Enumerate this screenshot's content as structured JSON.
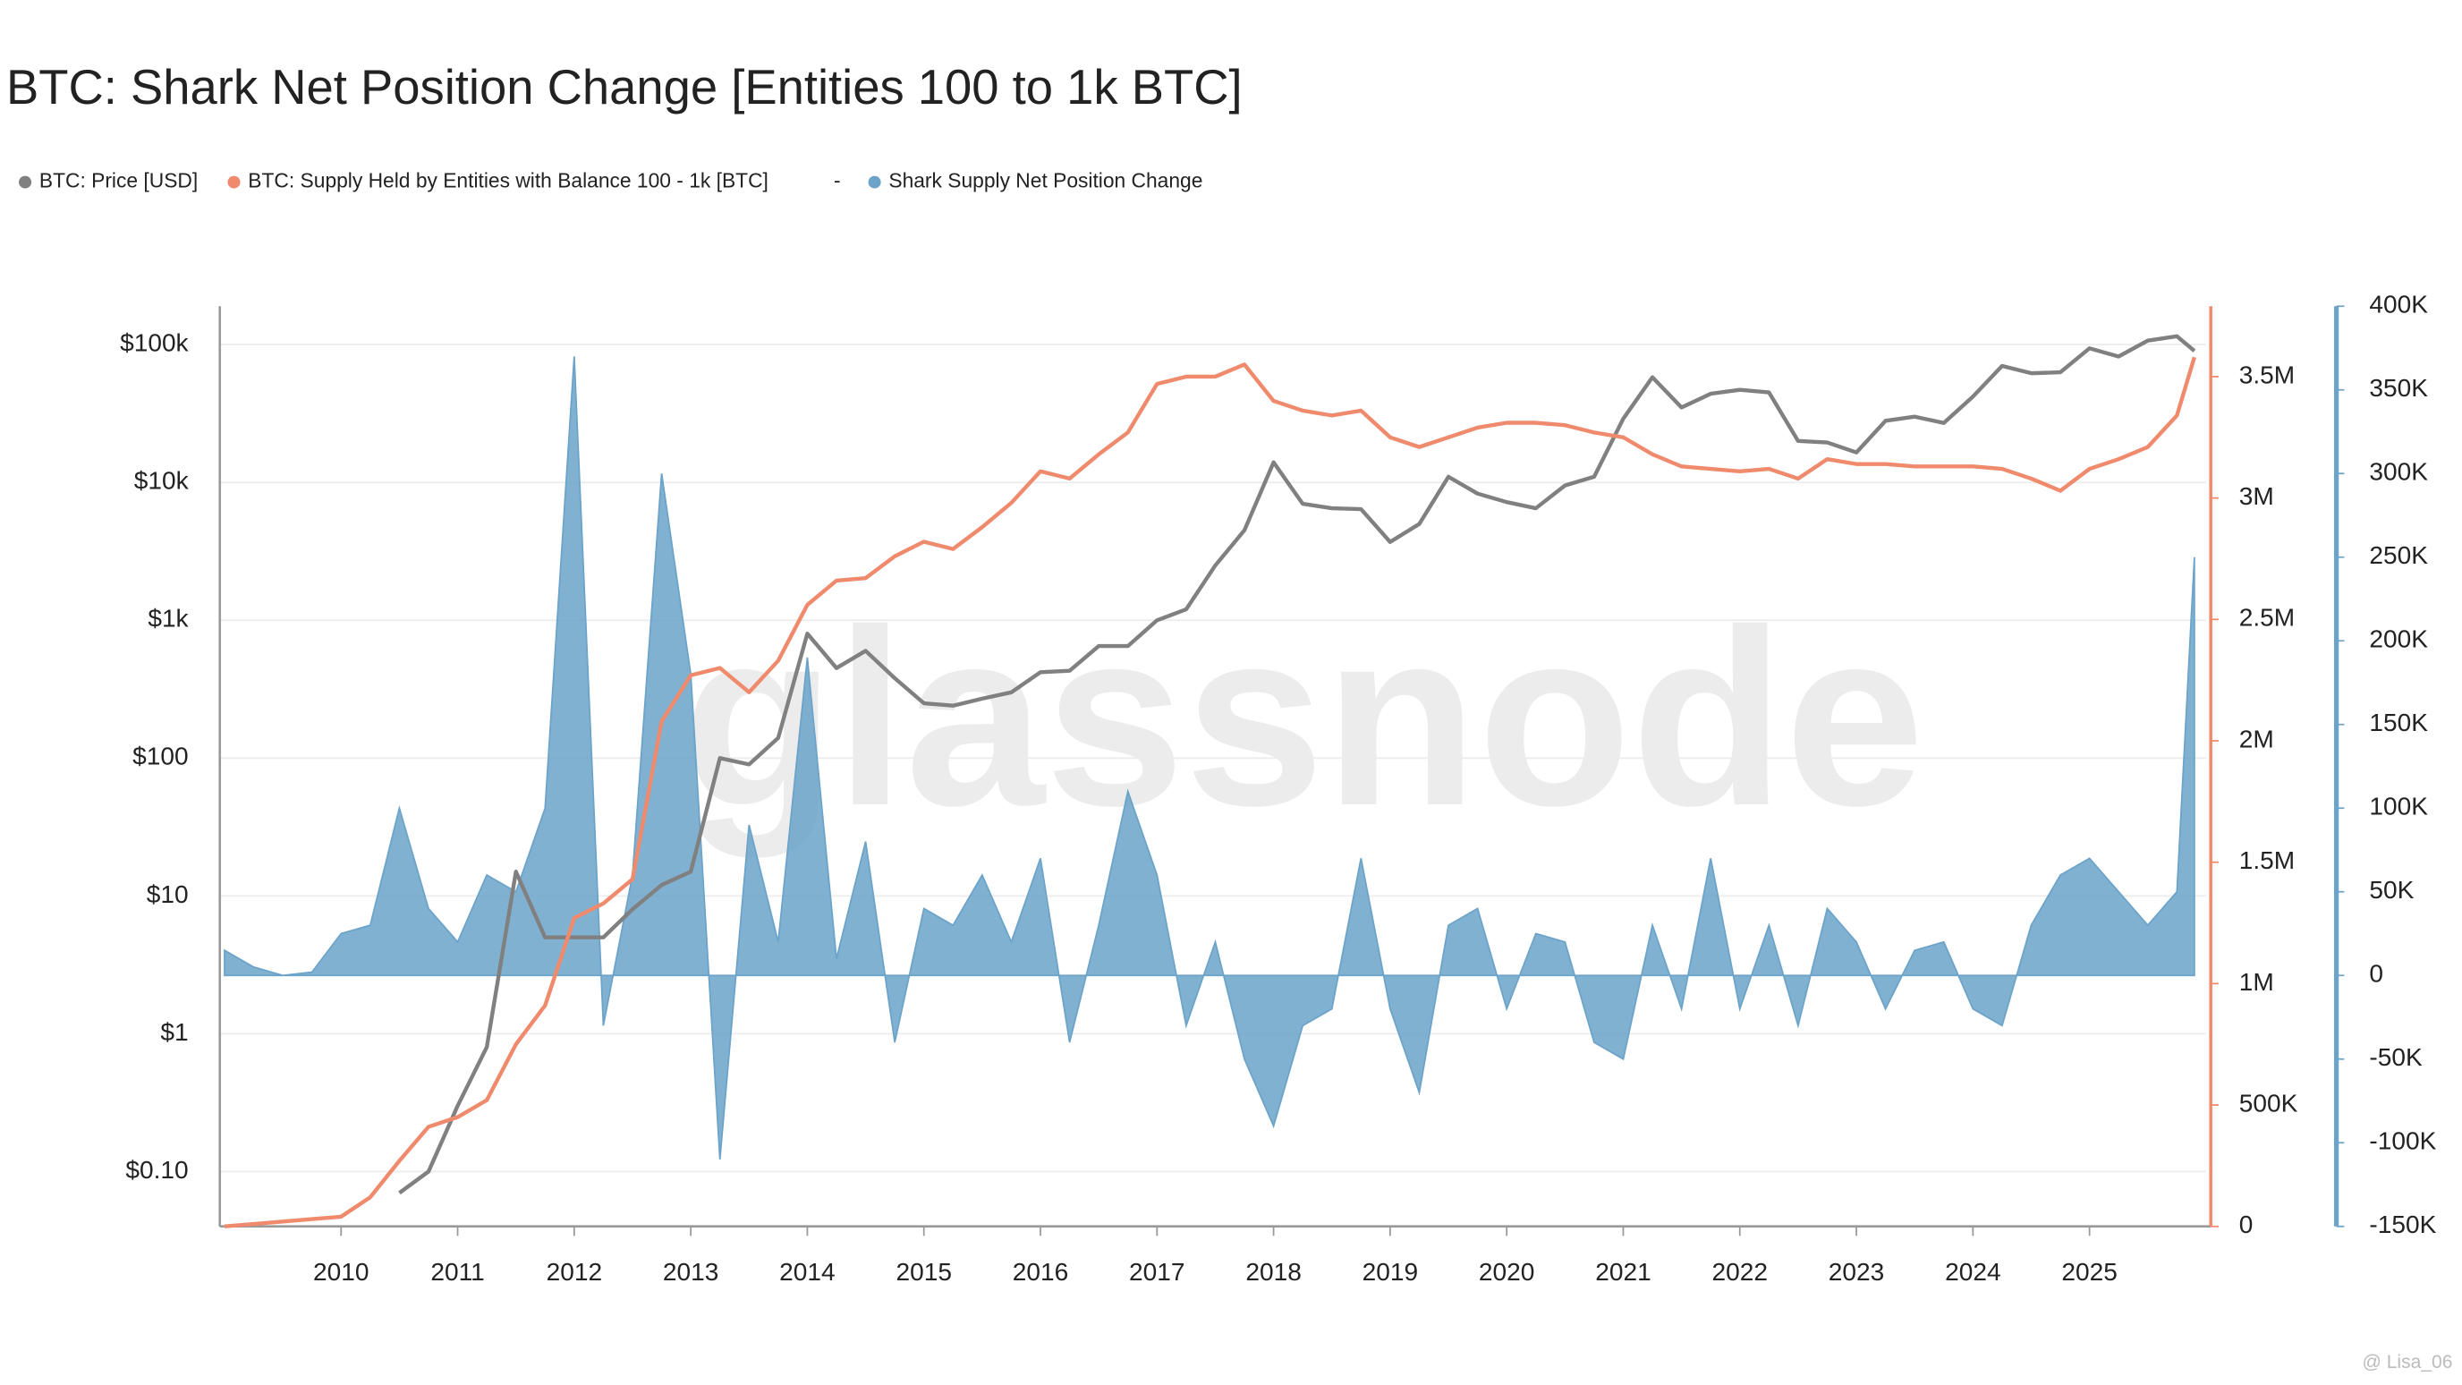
{
  "chart_data": {
    "type": "line",
    "title": "BTC: Shark Net Position Change [Entities 100 to 1k BTC]",
    "legend_separator": "-",
    "watermark": "glassnode",
    "credit": "@ Lisa_06",
    "x": [
      2009,
      2009.25,
      2009.5,
      2009.75,
      2010,
      2010.25,
      2010.5,
      2010.75,
      2011,
      2011.25,
      2011.5,
      2011.75,
      2012,
      2012.25,
      2012.5,
      2012.75,
      2013,
      2013.25,
      2013.5,
      2013.75,
      2014,
      2014.25,
      2014.5,
      2014.75,
      2015,
      2015.25,
      2015.5,
      2015.75,
      2016,
      2016.25,
      2016.5,
      2016.75,
      2017,
      2017.25,
      2017.5,
      2017.75,
      2018,
      2018.25,
      2018.5,
      2018.75,
      2019,
      2019.25,
      2019.5,
      2019.75,
      2020,
      2020.25,
      2020.5,
      2020.75,
      2021,
      2021.25,
      2021.5,
      2021.75,
      2022,
      2022.25,
      2022.5,
      2022.75,
      2023,
      2023.25,
      2023.5,
      2023.75,
      2024,
      2024.25,
      2024.5,
      2024.75,
      2025,
      2025.25,
      2025.5,
      2025.75,
      2025.9
    ],
    "xlim": [
      2009,
      2026
    ],
    "xticks": [
      2010,
      2011,
      2012,
      2013,
      2014,
      2015,
      2016,
      2017,
      2018,
      2019,
      2020,
      2021,
      2022,
      2023,
      2024,
      2025
    ],
    "ylim": [
      0.04,
      190000
    ],
    "log_scale": true,
    "yticks": [
      {
        "value": 0.1,
        "label": "$0.10"
      },
      {
        "value": 1,
        "label": "$1"
      },
      {
        "value": 10,
        "label": "$10"
      },
      {
        "value": 100,
        "label": "$100"
      },
      {
        "value": 1000,
        "label": "$1k"
      },
      {
        "value": 10000,
        "label": "$10k"
      },
      {
        "value": 100000,
        "label": "$100k"
      }
    ],
    "y2lim": [
      0,
      3790000
    ],
    "y2ticks": [
      0,
      {
        "value": 500000,
        "label": "500K"
      },
      {
        "value": 1000000,
        "label": "1M"
      },
      {
        "value": 1500000,
        "label": "1.5M"
      },
      {
        "value": 2000000,
        "label": "2M"
      },
      {
        "value": 2500000,
        "label": "2.5M"
      },
      {
        "value": 3000000,
        "label": "3M"
      },
      {
        "value": 3500000,
        "label": "3.5M"
      }
    ],
    "y3lim": [
      -150000,
      400000
    ],
    "y3ticks": [
      {
        "value": -150000,
        "label": "-150K"
      },
      {
        "value": -100000,
        "label": "-100K"
      },
      {
        "value": -50000,
        "label": "-50K"
      },
      0,
      {
        "value": 50000,
        "label": "50K"
      },
      {
        "value": 100000,
        "label": "100K"
      },
      {
        "value": 150000,
        "label": "150K"
      },
      {
        "value": 200000,
        "label": "200K"
      },
      {
        "value": 250000,
        "label": "250K"
      },
      {
        "value": 300000,
        "label": "300K"
      },
      {
        "value": 350000,
        "label": "350K"
      },
      {
        "value": 400000,
        "label": "400K"
      }
    ],
    "grid": true,
    "series": [
      {
        "name": "BTC: Price [USD]",
        "color": "#808080",
        "axis": "y",
        "values": [
          null,
          null,
          null,
          null,
          null,
          null,
          0.07,
          0.1,
          0.3,
          0.8,
          15,
          5,
          5,
          5,
          8,
          12,
          15,
          100,
          90,
          140,
          800,
          450,
          600,
          380,
          250,
          240,
          270,
          300,
          420,
          430,
          650,
          650,
          1000,
          1200,
          2500,
          4500,
          14000,
          7000,
          6500,
          6400,
          3700,
          5000,
          11000,
          8300,
          7200,
          6500,
          9500,
          11000,
          29000,
          58000,
          35000,
          44000,
          47000,
          45000,
          20000,
          19500,
          16500,
          28000,
          30000,
          27000,
          42000,
          70000,
          62000,
          63000,
          94000,
          82000,
          107000,
          115000,
          90000
        ]
      },
      {
        "name": "BTC: Supply Held by Entities with Balance 100 - 1k [BTC]",
        "color": "#f08a6c",
        "axis": "y2",
        "values": [
          0,
          10000,
          20000,
          30000,
          40000,
          120000,
          270000,
          410000,
          450000,
          520000,
          750000,
          910000,
          1270000,
          1330000,
          1430000,
          2080000,
          2270000,
          2300000,
          2200000,
          2330000,
          2560000,
          2660000,
          2670000,
          2760000,
          2820000,
          2790000,
          2880000,
          2980000,
          3110000,
          3080000,
          3180000,
          3270000,
          3470000,
          3500000,
          3500000,
          3550000,
          3400000,
          3360000,
          3340000,
          3360000,
          3250000,
          3210000,
          3250000,
          3290000,
          3310000,
          3310000,
          3300000,
          3270000,
          3250000,
          3180000,
          3130000,
          3120000,
          3110000,
          3120000,
          3080000,
          3160000,
          3140000,
          3140000,
          3130000,
          3130000,
          3130000,
          3120000,
          3080000,
          3030000,
          3120000,
          3160000,
          3210000,
          3340000,
          3580000
        ]
      },
      {
        "name": "Shark Supply Net Position Change",
        "color": "#6ba3c9",
        "axis": "y3",
        "kind": "area",
        "values": [
          15000,
          5000,
          0,
          2000,
          25000,
          30000,
          100000,
          40000,
          20000,
          60000,
          50000,
          100000,
          370000,
          -30000,
          60000,
          300000,
          180000,
          -110000,
          90000,
          20000,
          190000,
          10000,
          80000,
          -40000,
          40000,
          30000,
          60000,
          20000,
          70000,
          -40000,
          30000,
          110000,
          60000,
          -30000,
          20000,
          -50000,
          -90000,
          -30000,
          -20000,
          70000,
          -20000,
          -70000,
          30000,
          40000,
          -20000,
          25000,
          20000,
          -40000,
          -50000,
          30000,
          -20000,
          70000,
          -20000,
          30000,
          -30000,
          40000,
          20000,
          -20000,
          15000,
          20000,
          -20000,
          -30000,
          30000,
          60000,
          70000,
          50000,
          30000,
          50000,
          250000
        ]
      }
    ]
  }
}
